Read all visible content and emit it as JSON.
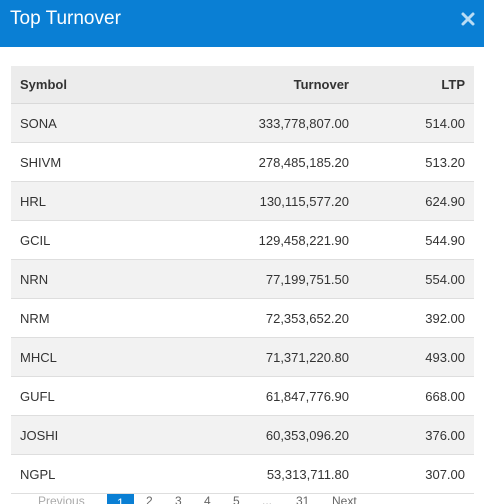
{
  "header": {
    "title": "Top Turnover"
  },
  "table": {
    "headers": {
      "symbol": "Symbol",
      "turnover": "Turnover",
      "ltp": "LTP"
    },
    "rows": [
      {
        "symbol": "SONA",
        "turnover": "333,778,807.00",
        "ltp": "514.00"
      },
      {
        "symbol": "SHIVM",
        "turnover": "278,485,185.20",
        "ltp": "513.20"
      },
      {
        "symbol": "HRL",
        "turnover": "130,115,577.20",
        "ltp": "624.90"
      },
      {
        "symbol": "GCIL",
        "turnover": "129,458,221.90",
        "ltp": "544.90"
      },
      {
        "symbol": "NRN",
        "turnover": "77,199,751.50",
        "ltp": "554.00"
      },
      {
        "symbol": "NRM",
        "turnover": "72,353,652.20",
        "ltp": "392.00"
      },
      {
        "symbol": "MHCL",
        "turnover": "71,371,220.80",
        "ltp": "493.00"
      },
      {
        "symbol": "GUFL",
        "turnover": "61,847,776.90",
        "ltp": "668.00"
      },
      {
        "symbol": "JOSHI",
        "turnover": "60,353,096.20",
        "ltp": "376.00"
      },
      {
        "symbol": "NGPL",
        "turnover": "53,313,711.80",
        "ltp": "307.00"
      }
    ]
  },
  "pagination": {
    "previous": "Previous",
    "pages": [
      "1",
      "2",
      "3",
      "4",
      "5",
      "...",
      "31"
    ],
    "next": "Next",
    "current": "1"
  },
  "colors": {
    "header": "#0a7fd4",
    "accent": "#0a7fd4"
  }
}
